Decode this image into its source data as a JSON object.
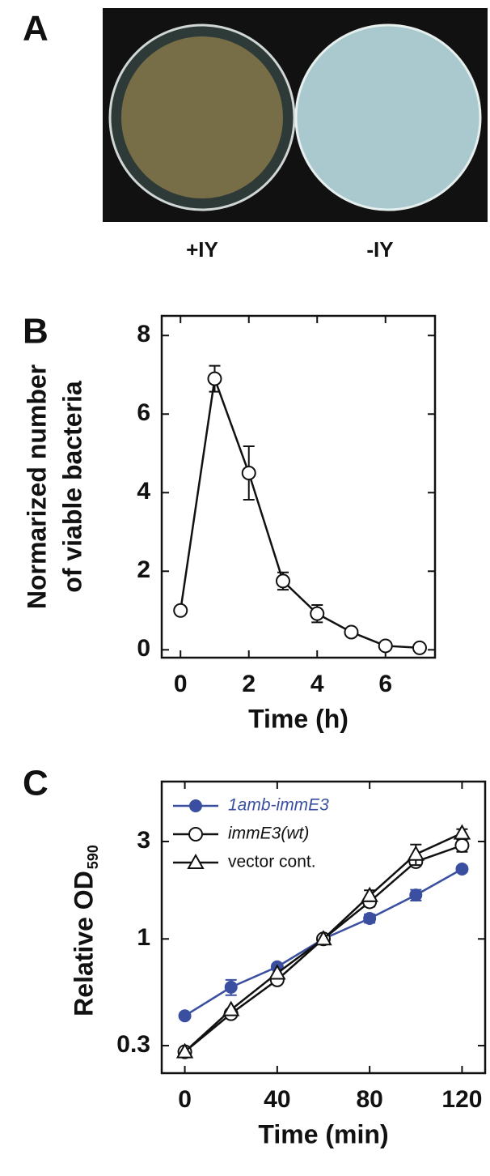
{
  "image_panel": {
    "label": "A",
    "captions": [
      "+IY",
      "-IY"
    ]
  },
  "chart_data": [
    {
      "type": "line",
      "label": "B",
      "xlabel": "Time (h)",
      "ylabel": [
        "Normarized number",
        "of viable bacteria"
      ],
      "x": [
        0,
        1,
        2,
        3,
        4,
        5,
        6,
        7
      ],
      "series": [
        {
          "color": "#111111",
          "marker": "circle-open",
          "values": [
            1,
            6.9,
            4.5,
            1.75,
            0.92,
            0.45,
            0.1,
            0.05
          ],
          "errors": [
            null,
            0.33,
            0.68,
            0.22,
            0.22,
            0.1,
            0.05,
            0.03
          ]
        }
      ],
      "xlim": [
        -0.55,
        7.45
      ],
      "ylim": [
        -0.2,
        8.5
      ],
      "xticks": [
        0,
        2,
        4,
        6
      ],
      "yticks": [
        0,
        2,
        4,
        6,
        8
      ]
    },
    {
      "type": "line",
      "label": "C",
      "xlabel": "Time (min)",
      "ylabel": "Relative OD",
      "ylabel_subscript": "590",
      "yscale": "log",
      "legend": "upper left",
      "x": [
        0,
        20,
        40,
        60,
        80,
        100,
        120
      ],
      "series": [
        {
          "name": "1amb-immE3",
          "color": "#3a4fa0",
          "marker": "circle-filled",
          "values": [
            0.42,
            0.58,
            0.73,
            1,
            1.26,
            1.64,
            2.2
          ],
          "errors": [
            null,
            0.05,
            null,
            null,
            0.06,
            0.1,
            0.07
          ]
        },
        {
          "name": "immE3(wt)",
          "color": "#111111",
          "marker": "circle-open",
          "values": [
            0.28,
            0.43,
            0.63,
            1,
            1.52,
            2.39,
            2.87
          ],
          "errors": [
            null,
            null,
            null,
            null,
            0.08,
            0.1,
            0.2
          ]
        },
        {
          "name": "vector cont.",
          "color": "#111111",
          "marker": "triangle-open",
          "values": [
            0.28,
            0.45,
            0.68,
            1,
            1.63,
            2.6,
            3.3
          ],
          "errors": [
            null,
            null,
            null,
            null,
            0.1,
            0.3,
            0.15
          ]
        }
      ],
      "xlim": [
        -10,
        130
      ],
      "ylim": [
        0.22,
        5.9
      ],
      "xticks": [
        0,
        40,
        80,
        120
      ],
      "yticks": [
        0.3,
        1,
        3
      ]
    }
  ]
}
